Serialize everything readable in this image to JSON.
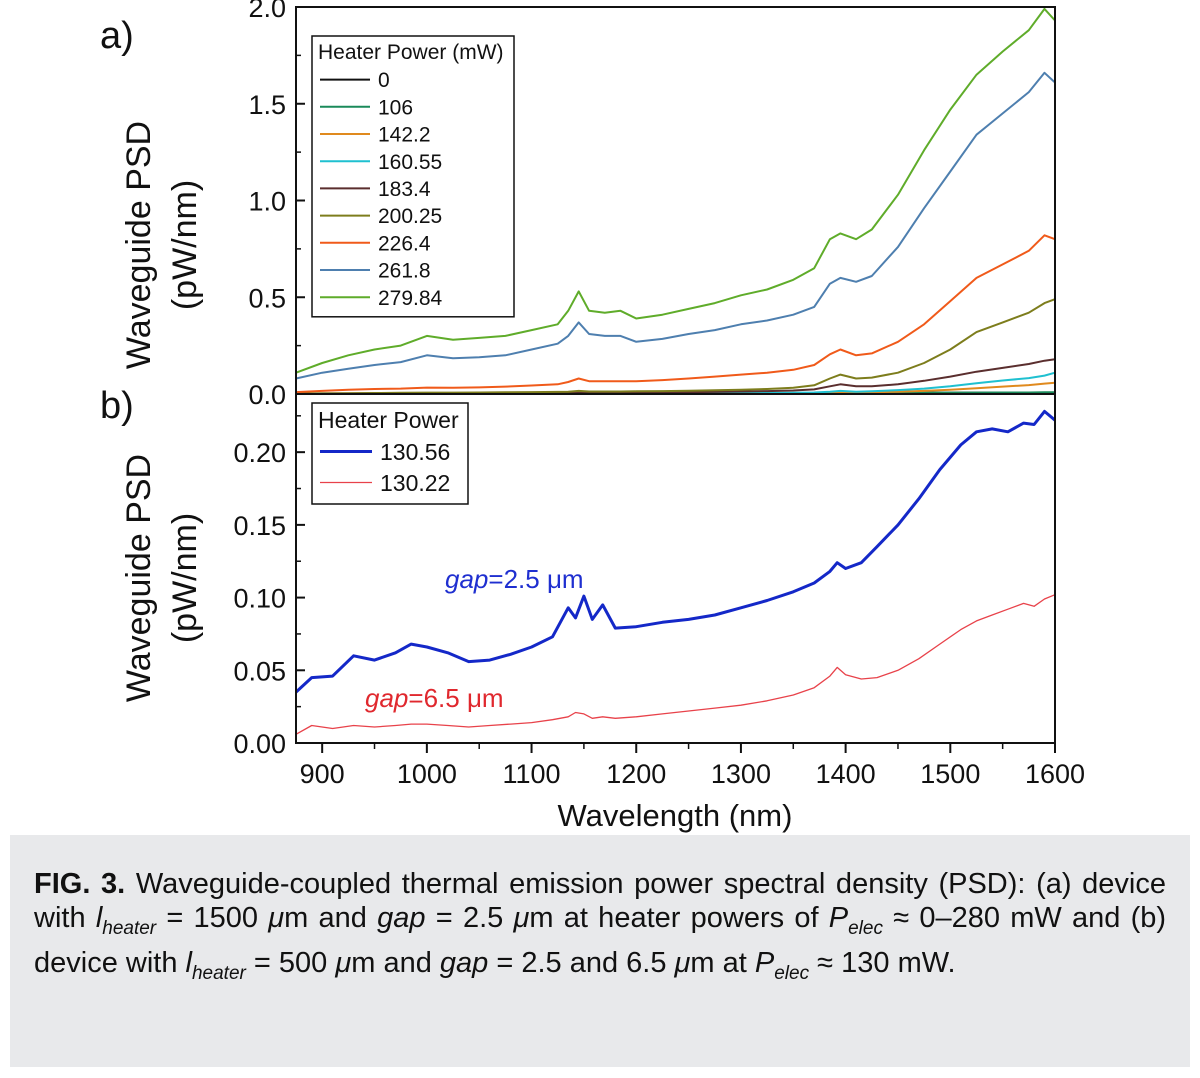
{
  "figure": {
    "caption": {
      "label": "FIG. 3.",
      "s1": " Waveguide-coupled thermal emission power spectral density (PSD): (a) device with ",
      "l": "l",
      "heater_sub": "heater",
      "s2": " = 1500 ",
      "mu": "μ",
      "s3": "m and ",
      "gap": "gap",
      "s4": " = 2.5 ",
      "s5": "m at heater powers of ",
      "P": "P",
      "elec_sub": "elec",
      "s6": " ≈ 0–280 mW and (b) device with ",
      "s7": " = 500 ",
      "s8": "m and ",
      "s9": " = 2.5 and 6.5 ",
      "s10": "m at ",
      "s11": " ≈ 130 mW."
    }
  },
  "chart_data": [
    {
      "type": "line",
      "panel_label": "a)",
      "title": "",
      "xlabel": "",
      "ylabel_line1": "Waveguide PSD",
      "ylabel_line2": "(pW/nm)",
      "xlim": [
        875,
        1600
      ],
      "ylim": [
        0,
        2.0
      ],
      "yticks": [
        "0.0",
        "0.5",
        "1.0",
        "1.5",
        "2.0"
      ],
      "grid": false,
      "legend_position": "top-left",
      "legend_title": "Heater Power (mW)",
      "x": [
        875,
        900,
        925,
        950,
        975,
        1000,
        1025,
        1050,
        1075,
        1100,
        1125,
        1135,
        1145,
        1155,
        1170,
        1185,
        1200,
        1225,
        1250,
        1275,
        1300,
        1325,
        1350,
        1370,
        1385,
        1395,
        1410,
        1425,
        1450,
        1475,
        1500,
        1525,
        1550,
        1575,
        1590,
        1600
      ],
      "series": [
        {
          "name": "0",
          "color": "#111111",
          "values": [
            0,
            0.001,
            0.001,
            0.002,
            0.002,
            0.002,
            0.002,
            0.002,
            0.003,
            0.003,
            0.003,
            0.003,
            0.004,
            0.004,
            0.004,
            0.004,
            0.004,
            0.004,
            0.004,
            0.005,
            0.005,
            0.005,
            0.005,
            0.005,
            0.006,
            0.006,
            0.006,
            0.006,
            0.006,
            0.006,
            0.007,
            0.007,
            0.007,
            0.008,
            0.008,
            0.008
          ]
        },
        {
          "name": "106",
          "color": "#1a8a5a",
          "values": [
            0,
            0.001,
            0.001,
            0.001,
            0.001,
            0.002,
            0.002,
            0.002,
            0.002,
            0.002,
            0.002,
            0.003,
            0.003,
            0.003,
            0.003,
            0.003,
            0.003,
            0.003,
            0.003,
            0.004,
            0.004,
            0.004,
            0.004,
            0.005,
            0.005,
            0.006,
            0.005,
            0.005,
            0.006,
            0.006,
            0.007,
            0.007,
            0.008,
            0.008,
            0.009,
            0.009
          ]
        },
        {
          "name": "142.2",
          "color": "#e08a1e",
          "values": [
            0,
            0,
            0.001,
            0.001,
            0.001,
            0.001,
            0.001,
            0.001,
            0.001,
            0.002,
            0.002,
            0.002,
            0.003,
            0.002,
            0.002,
            0.002,
            0.002,
            0.002,
            0.003,
            0.003,
            0.003,
            0.004,
            0.004,
            0.005,
            0.008,
            0.01,
            0.008,
            0.009,
            0.012,
            0.016,
            0.022,
            0.03,
            0.038,
            0.046,
            0.054,
            0.058
          ]
        },
        {
          "name": "160.55",
          "color": "#1fc0d0",
          "values": [
            0,
            0,
            0,
            0.001,
            0.001,
            0.001,
            0.001,
            0.001,
            0.001,
            0.001,
            0.002,
            0.002,
            0.003,
            0.002,
            0.002,
            0.002,
            0.002,
            0.003,
            0.003,
            0.003,
            0.004,
            0.005,
            0.006,
            0.008,
            0.012,
            0.016,
            0.012,
            0.014,
            0.02,
            0.028,
            0.04,
            0.056,
            0.07,
            0.082,
            0.095,
            0.11
          ]
        },
        {
          "name": "183.4",
          "color": "#5a2e2e",
          "values": [
            0.002,
            0.003,
            0.003,
            0.004,
            0.004,
            0.005,
            0.005,
            0.005,
            0.006,
            0.006,
            0.007,
            0.008,
            0.01,
            0.008,
            0.008,
            0.008,
            0.008,
            0.009,
            0.01,
            0.011,
            0.013,
            0.015,
            0.018,
            0.024,
            0.04,
            0.05,
            0.04,
            0.04,
            0.05,
            0.068,
            0.09,
            0.115,
            0.135,
            0.155,
            0.172,
            0.18
          ]
        },
        {
          "name": "200.25",
          "color": "#7d7d1c",
          "values": [
            0.002,
            0.003,
            0.004,
            0.005,
            0.006,
            0.007,
            0.007,
            0.008,
            0.009,
            0.01,
            0.011,
            0.012,
            0.016,
            0.013,
            0.013,
            0.013,
            0.014,
            0.015,
            0.017,
            0.019,
            0.022,
            0.026,
            0.032,
            0.045,
            0.08,
            0.1,
            0.08,
            0.085,
            0.11,
            0.16,
            0.23,
            0.32,
            0.37,
            0.42,
            0.47,
            0.49
          ]
        },
        {
          "name": "226.4",
          "color": "#f05a1a",
          "values": [
            0.01,
            0.016,
            0.022,
            0.026,
            0.028,
            0.033,
            0.032,
            0.034,
            0.038,
            0.044,
            0.05,
            0.062,
            0.08,
            0.066,
            0.066,
            0.066,
            0.066,
            0.072,
            0.08,
            0.09,
            0.1,
            0.11,
            0.125,
            0.15,
            0.205,
            0.23,
            0.2,
            0.21,
            0.27,
            0.36,
            0.48,
            0.6,
            0.67,
            0.74,
            0.82,
            0.8
          ]
        },
        {
          "name": "261.8",
          "color": "#4e7faf",
          "values": [
            0.08,
            0.11,
            0.13,
            0.15,
            0.165,
            0.2,
            0.185,
            0.19,
            0.2,
            0.23,
            0.26,
            0.3,
            0.37,
            0.31,
            0.3,
            0.3,
            0.27,
            0.285,
            0.31,
            0.33,
            0.36,
            0.38,
            0.41,
            0.45,
            0.57,
            0.6,
            0.58,
            0.61,
            0.76,
            0.96,
            1.15,
            1.34,
            1.45,
            1.56,
            1.66,
            1.61
          ]
        },
        {
          "name": "279.84",
          "color": "#5fac2a",
          "values": [
            0.11,
            0.16,
            0.2,
            0.23,
            0.25,
            0.3,
            0.28,
            0.29,
            0.3,
            0.33,
            0.36,
            0.43,
            0.53,
            0.43,
            0.42,
            0.43,
            0.39,
            0.41,
            0.44,
            0.47,
            0.51,
            0.54,
            0.59,
            0.65,
            0.8,
            0.83,
            0.8,
            0.85,
            1.03,
            1.26,
            1.47,
            1.65,
            1.77,
            1.88,
            1.99,
            1.93
          ]
        }
      ]
    },
    {
      "type": "line",
      "panel_label": "b)",
      "title": "",
      "xlabel": "Wavelength (nm)",
      "ylabel_line1": "Waveguide PSD",
      "ylabel_line2": "(pW/nm)",
      "xlim": [
        875,
        1600
      ],
      "ylim": [
        0,
        0.24
      ],
      "xticks": [
        "900",
        "1000",
        "1100",
        "1200",
        "1300",
        "1400",
        "1500",
        "1600"
      ],
      "yticks": [
        "0.00",
        "0.05",
        "0.10",
        "0.15",
        "0.20"
      ],
      "grid": false,
      "legend_position": "top-left",
      "legend_title": "Heater Power",
      "annotations": [
        {
          "italic": "gap",
          "rest": "=2.5 μm",
          "color": "#1f2fd0"
        },
        {
          "italic": "gap",
          "rest": "=6.5 μm",
          "color": "#e0282e"
        }
      ],
      "x": [
        875,
        890,
        910,
        930,
        950,
        970,
        985,
        1000,
        1020,
        1040,
        1060,
        1080,
        1100,
        1120,
        1135,
        1142,
        1150,
        1158,
        1168,
        1180,
        1200,
        1225,
        1250,
        1275,
        1300,
        1325,
        1350,
        1370,
        1385,
        1392,
        1400,
        1415,
        1430,
        1450,
        1470,
        1490,
        1510,
        1525,
        1540,
        1555,
        1570,
        1580,
        1590,
        1600
      ],
      "series": [
        {
          "name": "130.56",
          "color": "#1428c8",
          "values": [
            0.035,
            0.045,
            0.046,
            0.06,
            0.057,
            0.062,
            0.068,
            0.066,
            0.062,
            0.056,
            0.057,
            0.061,
            0.066,
            0.073,
            0.093,
            0.086,
            0.101,
            0.085,
            0.095,
            0.079,
            0.08,
            0.083,
            0.085,
            0.088,
            0.093,
            0.098,
            0.104,
            0.11,
            0.118,
            0.124,
            0.12,
            0.124,
            0.135,
            0.15,
            0.168,
            0.188,
            0.205,
            0.214,
            0.216,
            0.214,
            0.22,
            0.219,
            0.228,
            0.222
          ]
        },
        {
          "name": "130.22",
          "color": "#e8424a",
          "values": [
            0.006,
            0.012,
            0.01,
            0.012,
            0.011,
            0.012,
            0.013,
            0.013,
            0.012,
            0.011,
            0.012,
            0.013,
            0.014,
            0.016,
            0.018,
            0.021,
            0.02,
            0.017,
            0.018,
            0.017,
            0.018,
            0.02,
            0.022,
            0.024,
            0.026,
            0.029,
            0.033,
            0.038,
            0.046,
            0.052,
            0.047,
            0.044,
            0.045,
            0.05,
            0.058,
            0.068,
            0.078,
            0.084,
            0.088,
            0.092,
            0.096,
            0.094,
            0.099,
            0.102
          ]
        }
      ]
    }
  ]
}
